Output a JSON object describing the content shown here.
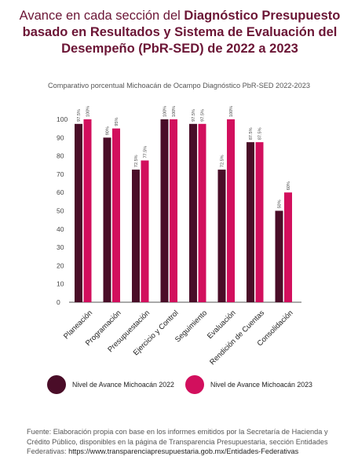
{
  "header": {
    "title_prefix": "Avance en cada sección del ",
    "title_bold": "Diagnóstico Presupuesto basado en Resultados y Sistema de Evaluación del Desempeño (PbR-SED)  de 2022 a 2023"
  },
  "footer": {
    "source_text": "Fuente: Elaboración propia con base en los informes emitidos por la Secretaría de Hacienda y Crédito Público, disponibles en la página de Transparencia Presupuestaria, sección Entidades Federativas: ",
    "source_url": "https://www.transparenciapresupuestaria.gob.mx/Entidades-Federativas"
  },
  "chart_data": {
    "type": "bar",
    "title": "Comparativo porcentual Michoacán de Ocampo Diagnóstico PbR-SED 2022-2023",
    "categories": [
      "Planeación",
      "Programación",
      "Presupuestación",
      "Ejercicio y Control",
      "Seguimiento",
      "Evaluación",
      "Rendición de Cuentas",
      "Consolidación"
    ],
    "series": [
      {
        "name": "Nivel de Avance Michoacán 2022",
        "color": "#4a0d28",
        "values": [
          97.5,
          90,
          72.5,
          100,
          97.5,
          72.5,
          87.5,
          50
        ],
        "labels": [
          "97.5%",
          "90%",
          "72.5%",
          "100%",
          "97.5%",
          "72.5%",
          "87.5%",
          "50%"
        ]
      },
      {
        "name": "Nivel de Avance Michoacán 2023",
        "color": "#d20f5d",
        "values": [
          100,
          95,
          77.5,
          100,
          97.5,
          100,
          87.5,
          60
        ],
        "labels": [
          "100%",
          "95%",
          "77.5%",
          "100%",
          "97.5%",
          "100%",
          "87.5%",
          "60%"
        ]
      }
    ],
    "ylim": [
      0,
      100
    ],
    "yticks": [
      0,
      10,
      20,
      30,
      40,
      50,
      60,
      70,
      80,
      90,
      100
    ],
    "legend": "bottom",
    "grid": false
  }
}
